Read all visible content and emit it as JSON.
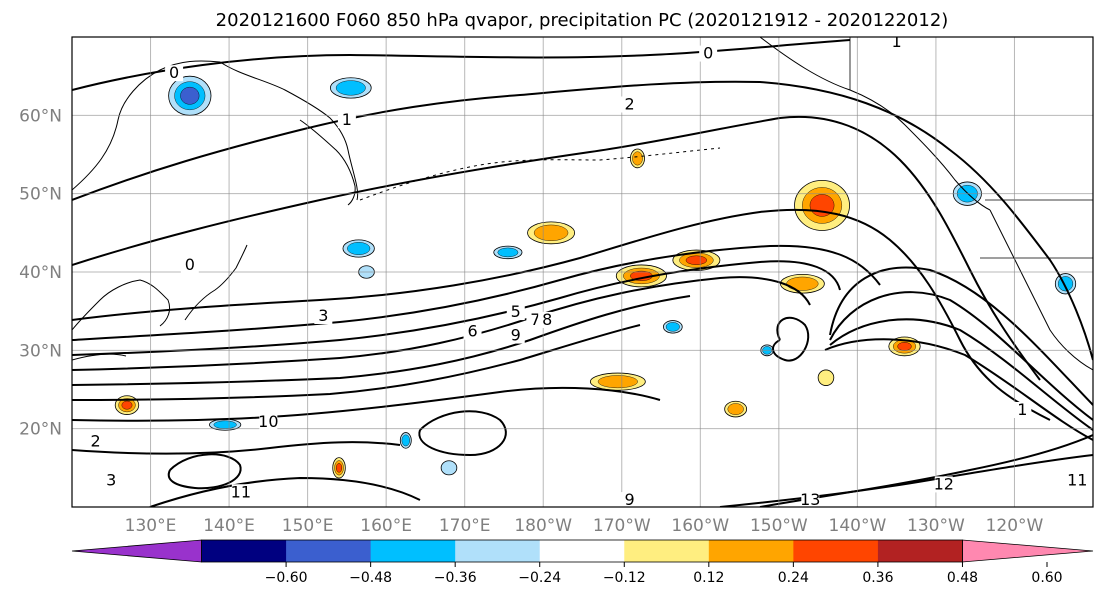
{
  "title": "2020121600 F060 850 hPa qvapor, precipitation PC (2020121912 - 2020122012)",
  "map": {
    "lon_range": [
      120,
      250
    ],
    "lat_range": [
      10,
      70
    ],
    "lat_ticks": [
      {
        "value": 20,
        "label": "20°N"
      },
      {
        "value": 30,
        "label": "30°N"
      },
      {
        "value": 40,
        "label": "40°N"
      },
      {
        "value": 50,
        "label": "50°N"
      },
      {
        "value": 60,
        "label": "60°N"
      }
    ],
    "lon_ticks": [
      {
        "value": 130,
        "label": "130°E"
      },
      {
        "value": 140,
        "label": "140°E"
      },
      {
        "value": 150,
        "label": "150°E"
      },
      {
        "value": 160,
        "label": "160°E"
      },
      {
        "value": 170,
        "label": "170°E"
      },
      {
        "value": 180,
        "label": "180°W"
      },
      {
        "value": 190,
        "label": "170°W"
      },
      {
        "value": 200,
        "label": "160°W"
      },
      {
        "value": 210,
        "label": "150°W"
      },
      {
        "value": 220,
        "label": "140°W"
      },
      {
        "value": 230,
        "label": "130°W"
      },
      {
        "value": 240,
        "label": "120°W"
      }
    ],
    "grid": true,
    "contour_labels": [
      {
        "text": "2",
        "lon": 191,
        "lat": 61
      },
      {
        "text": "3",
        "lon": 152,
        "lat": 34
      },
      {
        "text": "5",
        "lon": 176.5,
        "lat": 34.5
      },
      {
        "text": "6",
        "lon": 171,
        "lat": 32
      },
      {
        "text": "7",
        "lon": 179,
        "lat": 33.5
      },
      {
        "text": "8",
        "lon": 180.5,
        "lat": 33.5
      },
      {
        "text": "9",
        "lon": 176.5,
        "lat": 31.5
      },
      {
        "text": "10",
        "lon": 145,
        "lat": 20.5
      },
      {
        "text": "11",
        "lon": 141.5,
        "lat": 11.5
      },
      {
        "text": "12",
        "lon": 231,
        "lat": 12.5
      },
      {
        "text": "13",
        "lon": 214,
        "lat": 10.5
      },
      {
        "text": "1",
        "lon": 155,
        "lat": 59
      },
      {
        "text": "0",
        "lon": 201,
        "lat": 67.5
      },
      {
        "text": "0",
        "lon": 133,
        "lat": 65
      },
      {
        "text": "0",
        "lon": 135,
        "lat": 40.5
      },
      {
        "text": "1",
        "lon": 225,
        "lat": 69
      },
      {
        "text": "1",
        "lon": 241,
        "lat": 22
      },
      {
        "text": "9",
        "lon": 191,
        "lat": 10.5
      },
      {
        "text": "11",
        "lon": 248,
        "lat": 13
      },
      {
        "text": "2",
        "lon": 123,
        "lat": 18
      },
      {
        "text": "3",
        "lon": 125,
        "lat": 13
      }
    ],
    "precip_patches": [
      {
        "lon": 215.5,
        "lat": 48.5,
        "rx": 3.5,
        "ry": 3.2,
        "value": 0.4
      },
      {
        "lon": 199.5,
        "lat": 41.5,
        "rx": 3.0,
        "ry": 1.3,
        "value": 0.4
      },
      {
        "lon": 192.5,
        "lat": 39.5,
        "rx": 3.2,
        "ry": 1.4,
        "value": 0.4
      },
      {
        "lon": 181,
        "lat": 45,
        "rx": 3.0,
        "ry": 1.4,
        "value": 0.3
      },
      {
        "lon": 189.5,
        "lat": 26,
        "rx": 3.5,
        "ry": 1.1,
        "value": 0.3
      },
      {
        "lon": 226,
        "lat": 30.5,
        "rx": 2.0,
        "ry": 1.2,
        "value": 0.4
      },
      {
        "lon": 213,
        "lat": 38.5,
        "rx": 2.8,
        "ry": 1.2,
        "value": 0.3
      },
      {
        "lon": 127,
        "lat": 23,
        "rx": 1.5,
        "ry": 1.2,
        "value": 0.4
      },
      {
        "lon": 192,
        "lat": 54.5,
        "rx": 0.9,
        "ry": 1.2,
        "value": 0.3
      },
      {
        "lon": 204.5,
        "lat": 22.5,
        "rx": 1.4,
        "ry": 1.0,
        "value": 0.3
      },
      {
        "lon": 154,
        "lat": 15,
        "rx": 0.8,
        "ry": 1.3,
        "value": 0.4
      },
      {
        "lon": 216,
        "lat": 26.5,
        "rx": 1.0,
        "ry": 1.0,
        "value": 0.2
      },
      {
        "lon": 135,
        "lat": 62.5,
        "rx": 2.7,
        "ry": 2.5,
        "value": -0.4
      },
      {
        "lon": 155.5,
        "lat": 63.5,
        "rx": 2.6,
        "ry": 1.3,
        "value": -0.3
      },
      {
        "lon": 156.5,
        "lat": 43,
        "rx": 2.0,
        "ry": 1.1,
        "value": -0.3
      },
      {
        "lon": 175.5,
        "lat": 42.5,
        "rx": 1.8,
        "ry": 0.8,
        "value": -0.3
      },
      {
        "lon": 234,
        "lat": 50,
        "rx": 1.8,
        "ry": 1.5,
        "value": -0.3
      },
      {
        "lon": 196.5,
        "lat": 33,
        "rx": 1.2,
        "ry": 0.8,
        "value": -0.3
      },
      {
        "lon": 139.5,
        "lat": 20.5,
        "rx": 2.0,
        "ry": 0.7,
        "value": -0.3
      },
      {
        "lon": 162.5,
        "lat": 18.5,
        "rx": 0.7,
        "ry": 1.0,
        "value": -0.3
      },
      {
        "lon": 168,
        "lat": 15,
        "rx": 1.0,
        "ry": 0.9,
        "value": -0.2
      },
      {
        "lon": 246.5,
        "lat": 38.5,
        "rx": 1.3,
        "ry": 1.3,
        "value": -0.3
      },
      {
        "lon": 208.5,
        "lat": 30,
        "rx": 0.8,
        "ry": 0.7,
        "value": -0.3
      },
      {
        "lon": 157.5,
        "lat": 40,
        "rx": 1.0,
        "ry": 0.8,
        "value": -0.2
      }
    ]
  },
  "colorbar": {
    "ticks": [
      "−0.60",
      "−0.48",
      "−0.36",
      "−0.24",
      "−0.12",
      "0.12",
      "0.24",
      "0.36",
      "0.48",
      "0.60"
    ],
    "bins": [
      {
        "color": "#9932cc",
        "extend": "min"
      },
      {
        "color": "#000080"
      },
      {
        "color": "#3b5fcf"
      },
      {
        "color": "#00bfff"
      },
      {
        "color": "#b0e0fa"
      },
      {
        "color": "#ffffff"
      },
      {
        "color": "#ffee80"
      },
      {
        "color": "#ffa500"
      },
      {
        "color": "#ff4500"
      },
      {
        "color": "#b22222"
      },
      {
        "color": "#ff88b0",
        "extend": "max"
      }
    ]
  }
}
